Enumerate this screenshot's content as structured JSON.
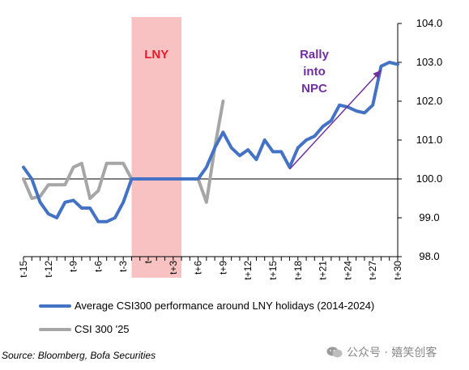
{
  "chart_data": {
    "type": "line",
    "x": [
      "t-15",
      "t-14",
      "t-13",
      "t-12",
      "t-11",
      "t-10",
      "t-9",
      "t-8",
      "t-7",
      "t-6",
      "t-5",
      "t-4",
      "t-3",
      "t-2",
      "t-1",
      "t",
      "t+1",
      "t+2",
      "t+3",
      "t+4",
      "t+5",
      "t+6",
      "t+7",
      "t+8",
      "t+9",
      "t+10",
      "t+11",
      "t+12",
      "t+13",
      "t+14",
      "t+15",
      "t+16",
      "t+17",
      "t+18",
      "t+19",
      "t+20",
      "t+21",
      "t+22",
      "t+23",
      "t+24",
      "t+25",
      "t+26",
      "t+27",
      "t+28",
      "t+29",
      "t+30"
    ],
    "x_tick_labels": [
      "t-15",
      "t-12",
      "t-9",
      "t-6",
      "t-3",
      "t",
      "t+3",
      "t+6",
      "t+9",
      "t+12",
      "t+15",
      "t+18",
      "t+21",
      "t+24",
      "t+27",
      "t+30"
    ],
    "ylim": [
      98.0,
      104.0
    ],
    "y_ticks": [
      "98.0",
      "99.0",
      "100.0",
      "101.0",
      "102.0",
      "103.0",
      "104.0"
    ],
    "reference_line": 100.0,
    "shaded_region": {
      "from": "t-2",
      "to": "t+4",
      "label": "LNY",
      "color": "#f8c2c2"
    },
    "series": [
      {
        "name": "Average CSI300 performance around LNY holidays (2014-2024)",
        "color": "#4472c4",
        "values": [
          100.3,
          100.0,
          99.4,
          99.1,
          99.0,
          99.4,
          99.45,
          99.25,
          99.25,
          98.9,
          98.9,
          99.0,
          99.4,
          100.0,
          100.0,
          100.0,
          100.0,
          100.0,
          100.0,
          100.0,
          100.0,
          100.0,
          100.3,
          100.8,
          101.2,
          100.8,
          100.6,
          100.75,
          100.5,
          101.0,
          100.7,
          100.7,
          100.3,
          100.8,
          101.0,
          101.1,
          101.35,
          101.5,
          101.9,
          101.85,
          101.75,
          101.7,
          101.9,
          102.9,
          103.0,
          102.95
        ]
      },
      {
        "name": "CSI 300 '25",
        "color": "#a6a6a6",
        "values": [
          100.0,
          99.5,
          99.55,
          99.85,
          99.85,
          99.85,
          100.3,
          100.4,
          99.5,
          99.7,
          100.4,
          100.4,
          100.4,
          100.0,
          null,
          null,
          null,
          null,
          null,
          null,
          null,
          100.0,
          99.4,
          100.8,
          102.0,
          null,
          null,
          null,
          null,
          null,
          null,
          null,
          null,
          null,
          null,
          null,
          null,
          null,
          null,
          null,
          null,
          null,
          null,
          null,
          null,
          null
        ]
      }
    ],
    "annotations": [
      {
        "text": [
          "Rally",
          "into",
          "NPC"
        ],
        "color": "#7030a0"
      }
    ],
    "arrow": {
      "from": {
        "x": "t+17",
        "y": 100.25
      },
      "to": {
        "x": "t+28",
        "y": 102.8
      },
      "color": "#7030a0"
    }
  },
  "legend": {
    "series1_label": "Average CSI300 performance around LNY holidays (2014-2024)",
    "series2_label": "CSI 300 '25"
  },
  "source": "Source: Bloomberg, Bofa Securities",
  "watermark": {
    "text": "公众号 · 嬉笑创客",
    "icon": "wechat-icon"
  }
}
